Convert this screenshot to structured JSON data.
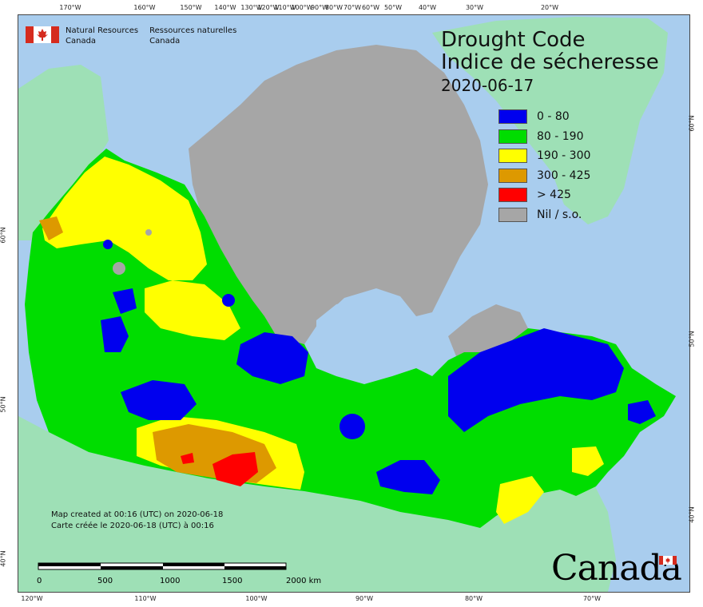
{
  "title": {
    "english": "Drought Code",
    "french": "Indice de sécheresse",
    "date": "2020-06-17"
  },
  "agency": {
    "name_en_line1": "Natural Resources",
    "name_en_line2": "Canada",
    "name_fr_line1": "Ressources naturelles",
    "name_fr_line2": "Canada"
  },
  "legend": [
    {
      "label": "0 - 80",
      "color": "#0000ee"
    },
    {
      "label": "80 - 190",
      "color": "#00dd00"
    },
    {
      "label": "190 - 300",
      "color": "#ffff00"
    },
    {
      "label": "300 - 425",
      "color": "#dd9900"
    },
    {
      "label": "> 425",
      "color": "#ff0000"
    },
    {
      "label": "Nil / s.o.",
      "color": "#a6a6a6"
    }
  ],
  "map_colors": {
    "water": "#a9cdee",
    "foreign_land": "#9ee0b6",
    "nodata": "#a6a6a6"
  },
  "graticule": {
    "top_longitudes": [
      "170°W",
      "160°W",
      "150°W",
      "140°W",
      "130°W",
      "120°W",
      "110°W",
      "100°W",
      "90°W",
      "80°W",
      "70°W",
      "60°W",
      "50°W",
      "40°W",
      "30°W",
      "20°W"
    ],
    "bottom_longitudes": [
      "120°W",
      "110°W",
      "100°W",
      "90°W",
      "80°W",
      "70°W"
    ],
    "left_latitudes": [
      "60°N",
      "50°N",
      "40°N"
    ],
    "right_latitudes": [
      "60°N",
      "50°N",
      "40°N"
    ]
  },
  "created_note": {
    "line_en": "Map created at 00:16 (UTC) on 2020-06-18",
    "line_fr": "Carte créée le 2020-06-18 (UTC) à 00:16"
  },
  "scale_bar": {
    "labels": [
      "0",
      "500",
      "1000",
      "1500",
      "2000 km"
    ]
  },
  "wordmark": "Canada"
}
